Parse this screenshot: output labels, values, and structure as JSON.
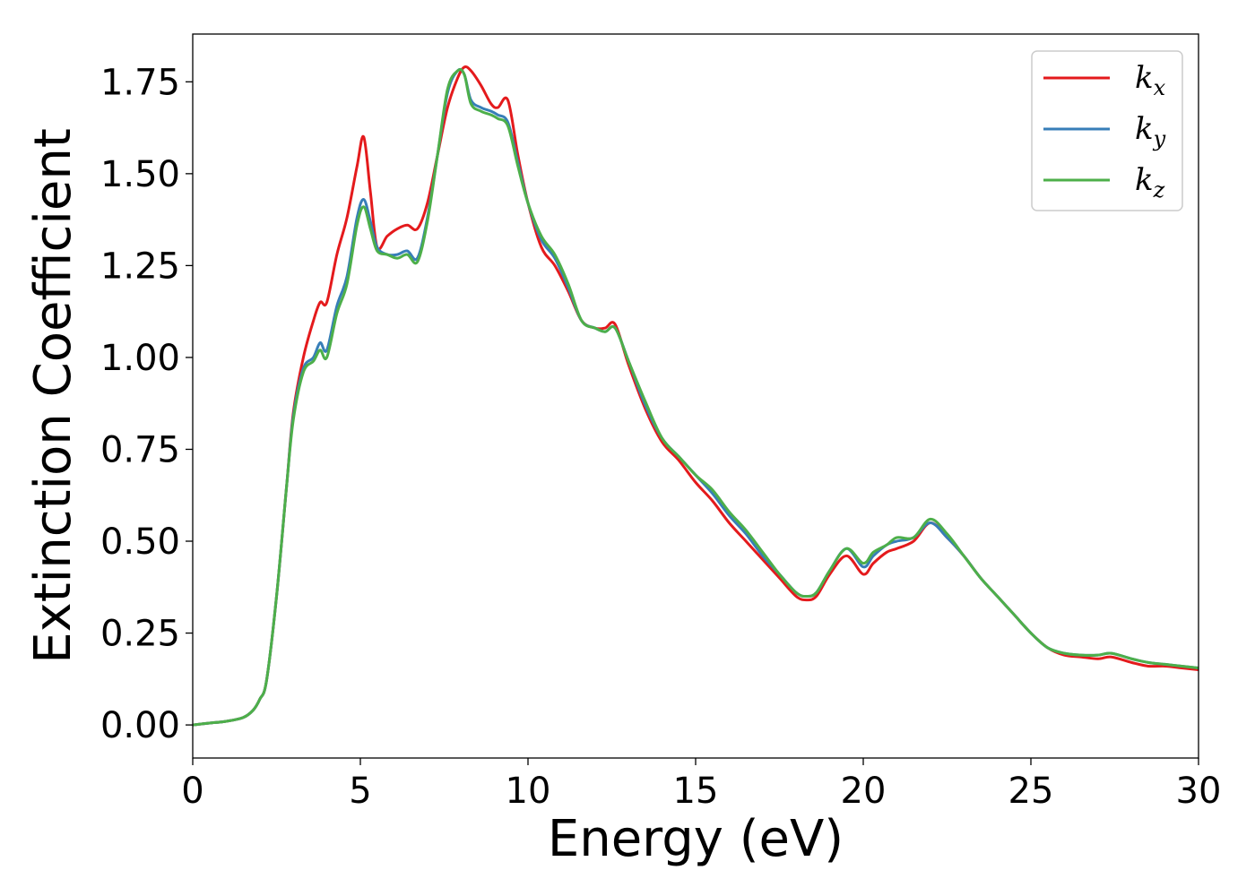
{
  "chart_data": {
    "type": "line",
    "xlabel": "Energy (eV)",
    "ylabel": "Extinction Coefficient",
    "xlim": [
      0,
      30
    ],
    "ylim": [
      -0.09,
      1.88
    ],
    "xticks": [
      "0",
      "5",
      "10",
      "15",
      "20",
      "25",
      "30"
    ],
    "yticks": [
      "0.00",
      "0.25",
      "0.50",
      "0.75",
      "1.00",
      "1.25",
      "1.50",
      "1.75"
    ],
    "xtick_values": [
      0,
      5,
      10,
      15,
      20,
      25,
      30
    ],
    "ytick_values": [
      0,
      0.25,
      0.5,
      0.75,
      1.0,
      1.25,
      1.5,
      1.75
    ],
    "grid": false,
    "legend_position": "top-right",
    "series": [
      {
        "name": "k",
        "subscript": "x",
        "color": "#e41a1c",
        "x": [
          0,
          0.5,
          1.0,
          1.5,
          1.8,
          2.0,
          2.2,
          2.5,
          2.8,
          3.0,
          3.3,
          3.6,
          3.8,
          4.0,
          4.3,
          4.6,
          4.9,
          5.1,
          5.3,
          5.5,
          5.8,
          6.1,
          6.4,
          6.7,
          7.0,
          7.3,
          7.6,
          7.9,
          8.1,
          8.3,
          8.6,
          8.9,
          9.1,
          9.4,
          9.7,
          10.0,
          10.4,
          10.8,
          11.2,
          11.6,
          12.0,
          12.3,
          12.6,
          13.0,
          13.5,
          14.0,
          14.5,
          15.0,
          15.5,
          16.0,
          16.5,
          17.0,
          17.5,
          18.0,
          18.3,
          18.6,
          19.0,
          19.5,
          20.0,
          20.3,
          20.7,
          21.0,
          21.5,
          22.0,
          22.5,
          23.0,
          23.5,
          24.0,
          24.5,
          25.0,
          25.5,
          26.0,
          26.5,
          27.0,
          27.4,
          28.0,
          28.5,
          29.0,
          29.5,
          30.0
        ],
        "y": [
          0.0,
          0.005,
          0.01,
          0.02,
          0.04,
          0.07,
          0.12,
          0.35,
          0.65,
          0.85,
          1.0,
          1.1,
          1.15,
          1.15,
          1.28,
          1.38,
          1.52,
          1.6,
          1.45,
          1.3,
          1.33,
          1.35,
          1.36,
          1.35,
          1.42,
          1.55,
          1.68,
          1.76,
          1.79,
          1.78,
          1.74,
          1.69,
          1.68,
          1.7,
          1.55,
          1.42,
          1.3,
          1.25,
          1.18,
          1.1,
          1.08,
          1.08,
          1.09,
          0.98,
          0.86,
          0.77,
          0.72,
          0.66,
          0.61,
          0.55,
          0.5,
          0.45,
          0.4,
          0.35,
          0.34,
          0.35,
          0.41,
          0.46,
          0.41,
          0.44,
          0.47,
          0.48,
          0.5,
          0.55,
          0.51,
          0.46,
          0.4,
          0.35,
          0.3,
          0.25,
          0.21,
          0.19,
          0.185,
          0.18,
          0.185,
          0.17,
          0.16,
          0.16,
          0.155,
          0.15
        ]
      },
      {
        "name": "k",
        "subscript": "y",
        "color": "#377eb8",
        "x": [
          0,
          0.5,
          1.0,
          1.5,
          1.8,
          2.0,
          2.2,
          2.5,
          2.8,
          3.0,
          3.3,
          3.6,
          3.8,
          4.0,
          4.3,
          4.6,
          4.9,
          5.1,
          5.3,
          5.5,
          5.8,
          6.1,
          6.4,
          6.7,
          7.0,
          7.3,
          7.6,
          7.9,
          8.1,
          8.3,
          8.6,
          8.9,
          9.1,
          9.4,
          9.7,
          10.0,
          10.4,
          10.8,
          11.2,
          11.6,
          12.0,
          12.3,
          12.6,
          13.0,
          13.5,
          14.0,
          14.5,
          15.0,
          15.5,
          16.0,
          16.5,
          17.0,
          17.5,
          18.0,
          18.3,
          18.6,
          19.0,
          19.5,
          20.0,
          20.3,
          20.7,
          21.0,
          21.5,
          22.0,
          22.5,
          23.0,
          23.5,
          24.0,
          24.5,
          25.0,
          25.5,
          26.0,
          26.5,
          27.0,
          27.4,
          28.0,
          28.5,
          29.0,
          29.5,
          30.0
        ],
        "y": [
          0.0,
          0.005,
          0.01,
          0.02,
          0.04,
          0.07,
          0.12,
          0.35,
          0.65,
          0.84,
          0.97,
          1.0,
          1.04,
          1.02,
          1.14,
          1.22,
          1.38,
          1.43,
          1.37,
          1.3,
          1.28,
          1.28,
          1.29,
          1.27,
          1.38,
          1.55,
          1.72,
          1.78,
          1.77,
          1.7,
          1.68,
          1.67,
          1.66,
          1.64,
          1.53,
          1.42,
          1.32,
          1.27,
          1.19,
          1.1,
          1.08,
          1.07,
          1.08,
          0.99,
          0.87,
          0.78,
          0.73,
          0.68,
          0.63,
          0.57,
          0.52,
          0.46,
          0.41,
          0.36,
          0.35,
          0.36,
          0.42,
          0.48,
          0.43,
          0.46,
          0.49,
          0.5,
          0.51,
          0.55,
          0.51,
          0.46,
          0.4,
          0.35,
          0.3,
          0.25,
          0.21,
          0.195,
          0.19,
          0.19,
          0.195,
          0.18,
          0.17,
          0.165,
          0.16,
          0.155
        ]
      },
      {
        "name": "k",
        "subscript": "z",
        "color": "#4daf4a",
        "x": [
          0,
          0.5,
          1.0,
          1.5,
          1.8,
          2.0,
          2.2,
          2.5,
          2.8,
          3.0,
          3.3,
          3.6,
          3.8,
          4.0,
          4.3,
          4.6,
          4.9,
          5.1,
          5.3,
          5.5,
          5.8,
          6.1,
          6.4,
          6.7,
          7.0,
          7.3,
          7.6,
          7.9,
          8.1,
          8.3,
          8.6,
          8.9,
          9.1,
          9.4,
          9.7,
          10.0,
          10.4,
          10.8,
          11.2,
          11.6,
          12.0,
          12.3,
          12.6,
          13.0,
          13.5,
          14.0,
          14.5,
          15.0,
          15.5,
          16.0,
          16.5,
          17.0,
          17.5,
          18.0,
          18.3,
          18.6,
          19.0,
          19.5,
          20.0,
          20.3,
          20.7,
          21.0,
          21.5,
          22.0,
          22.5,
          23.0,
          23.5,
          24.0,
          24.5,
          25.0,
          25.5,
          26.0,
          26.5,
          27.0,
          27.4,
          28.0,
          28.5,
          29.0,
          29.5,
          30.0
        ],
        "y": [
          0.0,
          0.005,
          0.01,
          0.02,
          0.04,
          0.07,
          0.12,
          0.35,
          0.65,
          0.83,
          0.96,
          0.99,
          1.02,
          1.0,
          1.12,
          1.2,
          1.36,
          1.41,
          1.35,
          1.29,
          1.28,
          1.27,
          1.28,
          1.26,
          1.37,
          1.55,
          1.73,
          1.78,
          1.77,
          1.69,
          1.67,
          1.66,
          1.65,
          1.63,
          1.52,
          1.42,
          1.33,
          1.28,
          1.2,
          1.1,
          1.08,
          1.07,
          1.08,
          0.99,
          0.88,
          0.78,
          0.73,
          0.68,
          0.64,
          0.58,
          0.53,
          0.47,
          0.41,
          0.36,
          0.35,
          0.36,
          0.42,
          0.48,
          0.44,
          0.47,
          0.49,
          0.51,
          0.51,
          0.56,
          0.52,
          0.46,
          0.4,
          0.35,
          0.3,
          0.25,
          0.21,
          0.195,
          0.19,
          0.19,
          0.195,
          0.18,
          0.17,
          0.165,
          0.16,
          0.155
        ]
      }
    ]
  }
}
